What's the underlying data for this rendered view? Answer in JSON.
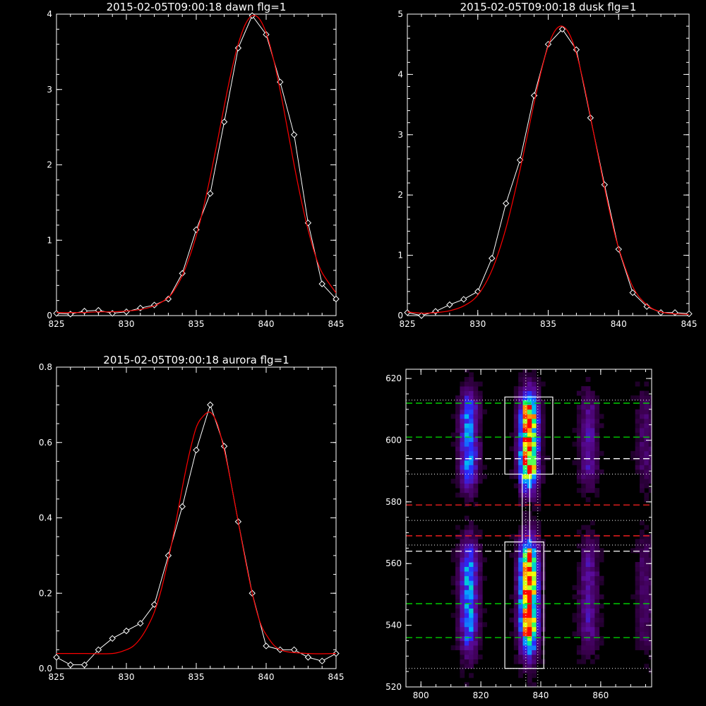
{
  "chart_data": [
    {
      "type": "line",
      "title": "2015-02-05T09:00:18 dawn flg=1",
      "xlim": [
        825,
        845
      ],
      "ylim": [
        0,
        4
      ],
      "xticks": [
        "825",
        "830",
        "835",
        "840",
        "845"
      ],
      "yticks": [
        "0",
        "1",
        "2",
        "3",
        "4"
      ],
      "series": [
        {
          "kind": "observed",
          "color": "#ffffff",
          "marker": "diamond",
          "x": [
            825,
            826,
            827,
            828,
            829,
            830,
            831,
            832,
            833,
            834,
            835,
            836,
            837,
            838,
            839,
            840,
            841,
            842,
            843,
            844,
            845
          ],
          "y": [
            0.03,
            0.02,
            0.06,
            0.07,
            0.03,
            0.05,
            0.1,
            0.14,
            0.22,
            0.56,
            1.14,
            1.62,
            2.57,
            3.55,
            3.98,
            3.73,
            3.1,
            2.4,
            1.23,
            0.42,
            0.22
          ]
        },
        {
          "kind": "fit",
          "color": "#ff0000",
          "x": [
            825,
            826,
            827,
            828,
            829,
            830,
            831,
            832,
            833,
            833.5,
            834,
            834.5,
            835,
            835.5,
            836,
            836.5,
            837,
            837.5,
            838,
            838.5,
            839,
            839.5,
            840,
            840.5,
            841,
            841.5,
            842,
            842.5,
            843,
            843.5,
            844,
            845
          ],
          "y": [
            0.04,
            0.04,
            0.04,
            0.05,
            0.05,
            0.06,
            0.08,
            0.13,
            0.24,
            0.36,
            0.53,
            0.77,
            1.06,
            1.42,
            1.84,
            2.3,
            2.78,
            3.23,
            3.6,
            3.86,
            3.98,
            3.94,
            3.75,
            3.42,
            2.99,
            2.5,
            2.0,
            1.54,
            1.14,
            0.81,
            0.57,
            0.3
          ]
        }
      ]
    },
    {
      "type": "line",
      "title": "2015-02-05T09:00:18 dusk flg=1",
      "xlim": [
        825,
        845
      ],
      "ylim": [
        0,
        5
      ],
      "xticks": [
        "825",
        "830",
        "835",
        "840",
        "845"
      ],
      "yticks": [
        "0",
        "1",
        "2",
        "3",
        "4",
        "5"
      ],
      "series": [
        {
          "kind": "observed",
          "color": "#ffffff",
          "marker": "diamond",
          "x": [
            825,
            826,
            827,
            828,
            829,
            830,
            831,
            832,
            833,
            834,
            835,
            836,
            837,
            838,
            839,
            840,
            841,
            842,
            843,
            844,
            845
          ],
          "y": [
            0.05,
            0.0,
            0.07,
            0.18,
            0.27,
            0.4,
            0.95,
            1.86,
            2.58,
            3.65,
            4.5,
            4.75,
            4.41,
            3.28,
            2.17,
            1.1,
            0.38,
            0.15,
            0.05,
            0.05,
            0.03
          ]
        },
        {
          "kind": "fit",
          "color": "#ff0000",
          "x": [
            825,
            826,
            827,
            828,
            829,
            830,
            831,
            832,
            833,
            833.5,
            834,
            834.5,
            835,
            835.5,
            836,
            836.5,
            837,
            837.5,
            838,
            838.5,
            839,
            839.5,
            840,
            841,
            842,
            843,
            844,
            845
          ],
          "y": [
            0.06,
            0.04,
            0.05,
            0.08,
            0.16,
            0.34,
            0.75,
            1.45,
            2.42,
            2.97,
            3.53,
            4.05,
            4.47,
            4.73,
            4.8,
            4.67,
            4.35,
            3.87,
            3.3,
            2.7,
            2.12,
            1.58,
            1.12,
            0.48,
            0.18,
            0.06,
            0.03,
            0.02
          ]
        }
      ]
    },
    {
      "type": "line",
      "title": "2015-02-05T09:00:18 aurora flg=1",
      "xlim": [
        825,
        845
      ],
      "ylim": [
        0,
        0.8
      ],
      "xticks": [
        "825",
        "830",
        "835",
        "840",
        "845"
      ],
      "yticks": [
        "0.0",
        "0.2",
        "0.4",
        "0.6",
        "0.8"
      ],
      "series": [
        {
          "kind": "observed",
          "color": "#ffffff",
          "marker": "diamond",
          "x": [
            825,
            826,
            827,
            828,
            829,
            830,
            831,
            832,
            833,
            834,
            835,
            836,
            837,
            838,
            839,
            840,
            841,
            842,
            843,
            844,
            845
          ],
          "y": [
            0.03,
            0.01,
            0.01,
            0.05,
            0.08,
            0.1,
            0.12,
            0.17,
            0.3,
            0.43,
            0.58,
            0.7,
            0.59,
            0.39,
            0.2,
            0.06,
            0.05,
            0.05,
            0.03,
            0.02,
            0.04
          ]
        },
        {
          "kind": "fit",
          "color": "#ff0000",
          "x": [
            825,
            827,
            829,
            830,
            830.5,
            831,
            831.5,
            832,
            832.5,
            833,
            833.5,
            834,
            834.5,
            835,
            835.5,
            836,
            836.5,
            837,
            837.5,
            838,
            838.5,
            839,
            839.5,
            840,
            841,
            843,
            845
          ],
          "y": [
            0.04,
            0.04,
            0.04,
            0.05,
            0.06,
            0.08,
            0.11,
            0.15,
            0.21,
            0.29,
            0.38,
            0.48,
            0.57,
            0.64,
            0.67,
            0.68,
            0.65,
            0.58,
            0.49,
            0.39,
            0.29,
            0.2,
            0.13,
            0.09,
            0.05,
            0.04,
            0.04
          ]
        }
      ]
    },
    {
      "type": "heatmap",
      "xlim": [
        795,
        877
      ],
      "ylim": [
        520,
        623
      ],
      "xticks": [
        "800",
        "820",
        "840",
        "860"
      ],
      "yticks": [
        "520",
        "540",
        "560",
        "580",
        "600",
        "620"
      ],
      "colormap": [
        "#000000",
        "#3d0052",
        "#5a0a9a",
        "#2a2aff",
        "#00b0ff",
        "#00ff80",
        "#ffff00",
        "#ff0000"
      ],
      "emission_lines_x": [
        816,
        836,
        856,
        875
      ],
      "line_relative_strength": [
        0.5,
        1.0,
        0.25,
        0.15
      ],
      "bright_regions_y": [
        [
          586,
          614
        ],
        [
          533,
          566
        ]
      ],
      "gap_y": [
        566,
        586
      ],
      "vertical_dotted_x": [
        835,
        839
      ],
      "horizontal_dotted_y": [
        526,
        566,
        574,
        589,
        613
      ],
      "horizontal_dashed": [
        {
          "y": 612,
          "color": "#00e000"
        },
        {
          "y": 601,
          "color": "#00e000"
        },
        {
          "y": 594,
          "color": "#ffffff"
        },
        {
          "y": 579,
          "color": "#ff2020"
        },
        {
          "y": 569,
          "color": "#ff2020"
        },
        {
          "y": 564,
          "color": "#ffffff"
        },
        {
          "y": 547,
          "color": "#00e000"
        },
        {
          "y": 536,
          "color": "#00e000"
        }
      ],
      "box_color": "#ffffff"
    }
  ]
}
